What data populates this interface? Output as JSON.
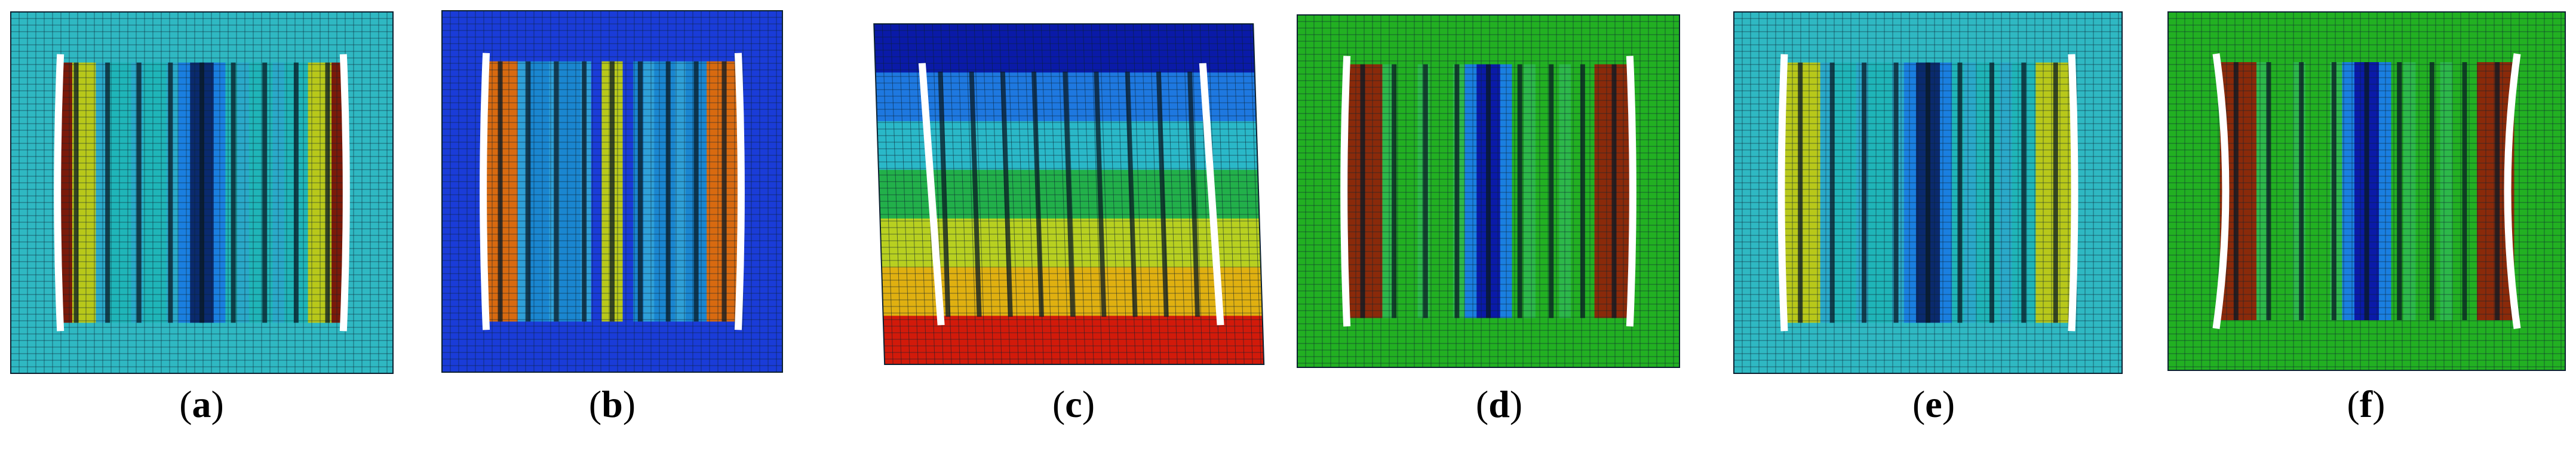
{
  "figure": {
    "panels": [
      {
        "id": "a",
        "caption": "a",
        "frame_color": "#2fb8c2",
        "colors": [
          "#1fb5b8",
          "#2aa9c9",
          "#1a7fe0",
          "#0a2a6e",
          "#1c9c4a",
          "#b8c81a",
          "#7a1a0a"
        ],
        "shape": "straight"
      },
      {
        "id": "b",
        "caption": "b",
        "frame_color": "#1a3cd8",
        "colors": [
          "#1a86d0",
          "#2fa0d8",
          "#1a3cd8",
          "#b8c81a",
          "#d86a10"
        ],
        "shape": "straight"
      },
      {
        "id": "c",
        "caption": "c",
        "frame_color": "#0a1aa8",
        "colors": [
          "#0a1aa8",
          "#1e78e0",
          "#2ab8c8",
          "#22b04a",
          "#b8d020",
          "#e0b010",
          "#d21a0a"
        ],
        "shape": "tilted"
      },
      {
        "id": "d",
        "caption": "d",
        "frame_color": "#22b022",
        "colors": [
          "#22b022",
          "#2db84a",
          "#1a7fe0",
          "#0a1aa8",
          "#c8d020",
          "#8a2a0a"
        ],
        "shape": "straight"
      },
      {
        "id": "e",
        "caption": "e",
        "frame_color": "#2fb8c2",
        "colors": [
          "#1fb5b8",
          "#2aa9c9",
          "#1a7fe0",
          "#0a2a6e",
          "#1c9c4a",
          "#b8c81a"
        ],
        "shape": "straight"
      },
      {
        "id": "f",
        "caption": "f",
        "frame_color": "#22b022",
        "colors": [
          "#22b022",
          "#2db84a",
          "#1a7fe0",
          "#0a1aa8",
          "#c8d020",
          "#8a2a0a"
        ],
        "shape": "bulged"
      }
    ]
  }
}
